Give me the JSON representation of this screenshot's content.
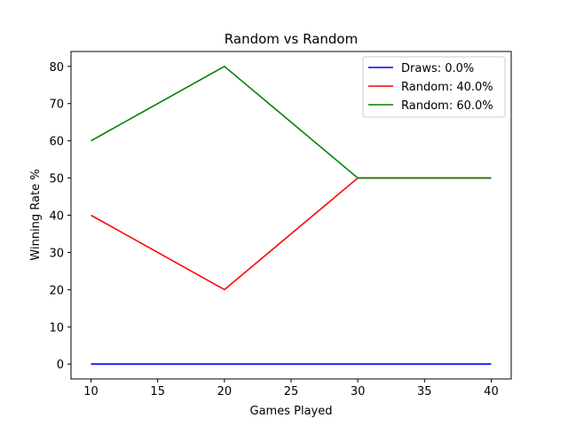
{
  "chart_data": {
    "type": "line",
    "title": "Random vs Random",
    "xlabel": "Games Played",
    "ylabel": "Winning Rate %",
    "x": [
      10,
      20,
      30,
      40
    ],
    "xlim": [
      8.5,
      41.5
    ],
    "ylim": [
      -4,
      84
    ],
    "xticks": [
      10,
      15,
      20,
      25,
      30,
      35,
      40
    ],
    "yticks": [
      0,
      10,
      20,
      30,
      40,
      50,
      60,
      70,
      80
    ],
    "grid": false,
    "legend_position": "top-right",
    "series": [
      {
        "name": "Draws: 0.0%",
        "color": "#0000ff",
        "values": [
          0,
          0,
          0,
          0
        ]
      },
      {
        "name": "Random: 40.0%",
        "color": "#ff0000",
        "values": [
          40,
          20,
          50,
          50
        ]
      },
      {
        "name": "Random: 60.0%",
        "color": "#008000",
        "values": [
          60,
          80,
          50,
          50
        ]
      }
    ]
  }
}
